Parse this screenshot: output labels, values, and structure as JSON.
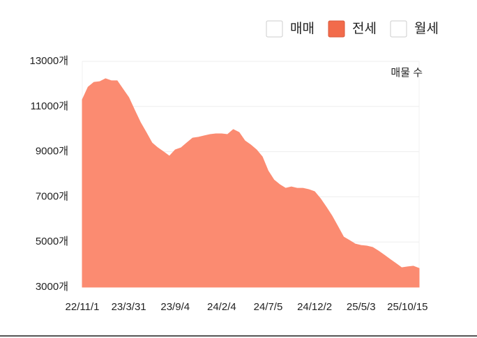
{
  "chart_data": {
    "type": "area",
    "legend": [
      {
        "label": "매매",
        "checked": false
      },
      {
        "label": "전세",
        "checked": true,
        "color": "#f26b4b"
      },
      {
        "label": "월세",
        "checked": false
      }
    ],
    "annotation": "매물 수",
    "color": "#fb8b71",
    "categories": [
      "22/11/1",
      null,
      null,
      null,
      null,
      null,
      null,
      null,
      "23/3/31",
      null,
      null,
      null,
      null,
      null,
      null,
      null,
      "23/9/4",
      null,
      null,
      null,
      null,
      null,
      null,
      null,
      "24/2/4",
      null,
      null,
      null,
      null,
      null,
      null,
      null,
      "24/7/5",
      null,
      null,
      null,
      null,
      null,
      null,
      null,
      "24/12/2",
      null,
      null,
      null,
      null,
      null,
      null,
      null,
      "25/5/3",
      null,
      null,
      null,
      null,
      null,
      null,
      null,
      "25/10/15",
      null,
      null
    ],
    "values": [
      11300,
      11860,
      12070,
      12100,
      12230,
      12140,
      12140,
      11770,
      11400,
      10840,
      10300,
      9850,
      9390,
      9170,
      8990,
      8800,
      9080,
      9170,
      9390,
      9600,
      9640,
      9700,
      9760,
      9790,
      9790,
      9760,
      9980,
      9850,
      9480,
      9300,
      9080,
      8770,
      8150,
      7750,
      7540,
      7380,
      7440,
      7380,
      7380,
      7320,
      7230,
      6920,
      6550,
      6150,
      5690,
      5220,
      5070,
      4910,
      4850,
      4820,
      4760,
      4600,
      4420,
      4230,
      4050,
      3860,
      3900,
      3930,
      3830
    ],
    "ylim": [
      3000,
      13000
    ],
    "yticks": [
      {
        "value": 3000,
        "label": "3000개"
      },
      {
        "value": 5000,
        "label": "5000개"
      },
      {
        "value": 7000,
        "label": "7000개"
      },
      {
        "value": 9000,
        "label": "9000개"
      },
      {
        "value": 11000,
        "label": "11000개"
      },
      {
        "value": 13000,
        "label": "13000개"
      }
    ],
    "grid": true
  }
}
